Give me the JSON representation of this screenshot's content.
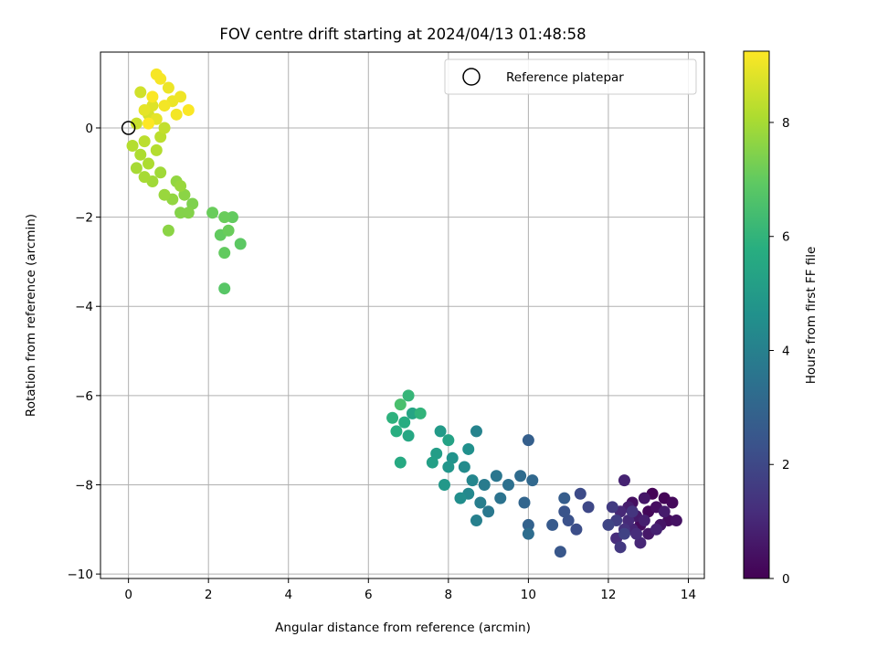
{
  "chart_data": {
    "type": "scatter",
    "title": "FOV centre drift starting at 2024/04/13 01:48:58",
    "xlabel": "Angular distance from reference (arcmin)",
    "ylabel": "Rotation from reference (arcmin)",
    "xlim": [
      -0.7,
      14.4
    ],
    "ylim": [
      -10.1,
      1.7
    ],
    "xticks": [
      0,
      2,
      4,
      6,
      8,
      10,
      12,
      14
    ],
    "yticks": [
      -10,
      -8,
      -6,
      -4,
      -2,
      0
    ],
    "grid": true,
    "legend": {
      "placement": "top-right",
      "entries": [
        "Reference platepar"
      ]
    },
    "colorbar": {
      "label": "Hours from first FF file",
      "range": [
        0,
        9.25
      ],
      "ticks": [
        0,
        2,
        4,
        6,
        8
      ],
      "colormap": "viridis"
    },
    "reference_point": {
      "x": 0,
      "y": 0
    },
    "series": [
      {
        "marker": "filled-circle",
        "points": [
          {
            "x": 13.1,
            "y": -8.2,
            "h": 0.05
          },
          {
            "x": 13.4,
            "y": -8.3,
            "h": 0.1
          },
          {
            "x": 13.0,
            "y": -8.6,
            "h": 0.15
          },
          {
            "x": 13.6,
            "y": -8.4,
            "h": 0.2
          },
          {
            "x": 12.8,
            "y": -8.9,
            "h": 0.25
          },
          {
            "x": 13.5,
            "y": -8.8,
            "h": 0.3
          },
          {
            "x": 13.2,
            "y": -8.5,
            "h": 0.35
          },
          {
            "x": 12.6,
            "y": -8.4,
            "h": 0.4
          },
          {
            "x": 13.7,
            "y": -8.8,
            "h": 0.45
          },
          {
            "x": 13.3,
            "y": -8.9,
            "h": 0.5
          },
          {
            "x": 12.9,
            "y": -8.3,
            "h": 0.55
          },
          {
            "x": 13.0,
            "y": -9.1,
            "h": 0.6
          },
          {
            "x": 12.7,
            "y": -8.7,
            "h": 0.65
          },
          {
            "x": 13.4,
            "y": -8.6,
            "h": 0.7
          },
          {
            "x": 12.5,
            "y": -8.5,
            "h": 0.75
          },
          {
            "x": 12.9,
            "y": -8.8,
            "h": 0.8
          },
          {
            "x": 13.2,
            "y": -9.0,
            "h": 0.85
          },
          {
            "x": 12.4,
            "y": -7.9,
            "h": 0.9
          },
          {
            "x": 12.6,
            "y": -9.0,
            "h": 0.95
          },
          {
            "x": 12.8,
            "y": -9.3,
            "h": 1.0
          },
          {
            "x": 12.3,
            "y": -8.6,
            "h": 1.05
          },
          {
            "x": 12.5,
            "y": -8.8,
            "h": 1.1
          },
          {
            "x": 12.7,
            "y": -9.1,
            "h": 1.15
          },
          {
            "x": 12.2,
            "y": -9.2,
            "h": 1.2
          },
          {
            "x": 12.4,
            "y": -9.0,
            "h": 1.3
          },
          {
            "x": 12.6,
            "y": -8.6,
            "h": 1.4
          },
          {
            "x": 12.3,
            "y": -9.4,
            "h": 1.5
          },
          {
            "x": 12.1,
            "y": -8.5,
            "h": 1.6
          },
          {
            "x": 12.2,
            "y": -8.8,
            "h": 1.7
          },
          {
            "x": 12.4,
            "y": -9.1,
            "h": 1.8
          },
          {
            "x": 12.0,
            "y": -8.9,
            "h": 1.9
          },
          {
            "x": 11.5,
            "y": -8.5,
            "h": 2.0
          },
          {
            "x": 11.3,
            "y": -8.2,
            "h": 2.1
          },
          {
            "x": 11.2,
            "y": -9.0,
            "h": 2.2
          },
          {
            "x": 11.0,
            "y": -8.8,
            "h": 2.3
          },
          {
            "x": 10.9,
            "y": -8.6,
            "h": 2.4
          },
          {
            "x": 10.8,
            "y": -9.5,
            "h": 2.5
          },
          {
            "x": 10.6,
            "y": -8.9,
            "h": 2.6
          },
          {
            "x": 10.9,
            "y": -8.3,
            "h": 2.7
          },
          {
            "x": 10.0,
            "y": -7.0,
            "h": 2.8
          },
          {
            "x": 10.0,
            "y": -8.9,
            "h": 2.9
          },
          {
            "x": 9.9,
            "y": -8.4,
            "h": 3.0
          },
          {
            "x": 10.1,
            "y": -7.9,
            "h": 3.1
          },
          {
            "x": 9.8,
            "y": -7.8,
            "h": 3.2
          },
          {
            "x": 10.0,
            "y": -9.1,
            "h": 3.3
          },
          {
            "x": 9.5,
            "y": -8.0,
            "h": 3.4
          },
          {
            "x": 9.3,
            "y": -8.3,
            "h": 3.5
          },
          {
            "x": 9.2,
            "y": -7.8,
            "h": 3.6
          },
          {
            "x": 9.0,
            "y": -8.6,
            "h": 3.7
          },
          {
            "x": 8.9,
            "y": -8.0,
            "h": 3.8
          },
          {
            "x": 8.8,
            "y": -8.4,
            "h": 3.9
          },
          {
            "x": 8.7,
            "y": -8.8,
            "h": 4.0
          },
          {
            "x": 8.7,
            "y": -6.8,
            "h": 4.1
          },
          {
            "x": 8.6,
            "y": -7.9,
            "h": 4.2
          },
          {
            "x": 8.5,
            "y": -8.2,
            "h": 4.3
          },
          {
            "x": 8.4,
            "y": -7.6,
            "h": 4.4
          },
          {
            "x": 8.3,
            "y": -8.3,
            "h": 4.5
          },
          {
            "x": 8.5,
            "y": -7.2,
            "h": 4.6
          },
          {
            "x": 8.1,
            "y": -7.4,
            "h": 4.7
          },
          {
            "x": 8.0,
            "y": -7.6,
            "h": 4.8
          },
          {
            "x": 7.9,
            "y": -8.0,
            "h": 4.9
          },
          {
            "x": 7.8,
            "y": -6.8,
            "h": 5.0
          },
          {
            "x": 7.7,
            "y": -7.3,
            "h": 5.1
          },
          {
            "x": 7.6,
            "y": -7.5,
            "h": 5.2
          },
          {
            "x": 8.0,
            "y": -7.0,
            "h": 5.3
          },
          {
            "x": 7.1,
            "y": -6.4,
            "h": 5.4
          },
          {
            "x": 7.0,
            "y": -6.9,
            "h": 5.5
          },
          {
            "x": 6.8,
            "y": -7.5,
            "h": 5.6
          },
          {
            "x": 6.9,
            "y": -6.6,
            "h": 5.7
          },
          {
            "x": 6.7,
            "y": -6.8,
            "h": 5.8
          },
          {
            "x": 6.6,
            "y": -6.5,
            "h": 5.9
          },
          {
            "x": 7.3,
            "y": -6.4,
            "h": 6.0
          },
          {
            "x": 7.0,
            "y": -6.0,
            "h": 6.1
          },
          {
            "x": 6.8,
            "y": -6.2,
            "h": 6.5
          },
          {
            "x": 2.4,
            "y": -3.6,
            "h": 6.8
          },
          {
            "x": 2.8,
            "y": -2.6,
            "h": 6.9
          },
          {
            "x": 2.6,
            "y": -2.0,
            "h": 7.0
          },
          {
            "x": 2.4,
            "y": -2.8,
            "h": 7.0
          },
          {
            "x": 2.3,
            "y": -2.4,
            "h": 7.0
          },
          {
            "x": 2.5,
            "y": -2.3,
            "h": 7.1
          },
          {
            "x": 2.1,
            "y": -1.9,
            "h": 7.1
          },
          {
            "x": 2.4,
            "y": -2.0,
            "h": 7.1
          },
          {
            "x": 1.6,
            "y": -1.7,
            "h": 7.4
          },
          {
            "x": 1.5,
            "y": -1.9,
            "h": 7.5
          },
          {
            "x": 1.3,
            "y": -1.9,
            "h": 7.5
          },
          {
            "x": 1.0,
            "y": -2.3,
            "h": 7.6
          },
          {
            "x": 1.4,
            "y": -1.5,
            "h": 7.6
          },
          {
            "x": 1.2,
            "y": -1.2,
            "h": 7.7
          },
          {
            "x": 1.1,
            "y": -1.6,
            "h": 7.7
          },
          {
            "x": 0.9,
            "y": -1.5,
            "h": 7.8
          },
          {
            "x": 1.3,
            "y": -1.3,
            "h": 7.8
          },
          {
            "x": 0.8,
            "y": -1.0,
            "h": 7.9
          },
          {
            "x": 0.6,
            "y": -1.2,
            "h": 7.9
          },
          {
            "x": 0.4,
            "y": -1.1,
            "h": 8.0
          },
          {
            "x": 0.2,
            "y": -0.9,
            "h": 8.0
          },
          {
            "x": 0.5,
            "y": -0.8,
            "h": 8.1
          },
          {
            "x": 0.3,
            "y": -0.6,
            "h": 8.1
          },
          {
            "x": 0.7,
            "y": -0.5,
            "h": 8.2
          },
          {
            "x": 0.1,
            "y": -0.4,
            "h": 8.2
          },
          {
            "x": 0.8,
            "y": -0.2,
            "h": 8.3
          },
          {
            "x": 0.4,
            "y": -0.3,
            "h": 8.3
          },
          {
            "x": 0.9,
            "y": 0.0,
            "h": 8.4
          },
          {
            "x": 0.2,
            "y": 0.1,
            "h": 8.5
          },
          {
            "x": 0.3,
            "y": 0.8,
            "h": 8.6
          },
          {
            "x": 0.5,
            "y": 0.3,
            "h": 8.7
          },
          {
            "x": 0.6,
            "y": 0.5,
            "h": 8.8
          },
          {
            "x": 0.7,
            "y": 0.2,
            "h": 8.9
          },
          {
            "x": 0.4,
            "y": 0.4,
            "h": 8.9
          },
          {
            "x": 1.0,
            "y": 0.9,
            "h": 9.0
          },
          {
            "x": 1.1,
            "y": 0.6,
            "h": 9.0
          },
          {
            "x": 1.3,
            "y": 0.7,
            "h": 9.05
          },
          {
            "x": 0.9,
            "y": 0.5,
            "h": 9.1
          },
          {
            "x": 1.2,
            "y": 0.3,
            "h": 9.1
          },
          {
            "x": 0.8,
            "y": 1.1,
            "h": 9.15
          },
          {
            "x": 0.7,
            "y": 1.2,
            "h": 9.15
          },
          {
            "x": 1.5,
            "y": 0.4,
            "h": 9.2
          },
          {
            "x": 0.6,
            "y": 0.7,
            "h": 9.2
          },
          {
            "x": 0.5,
            "y": 0.1,
            "h": 9.25
          }
        ]
      }
    ]
  }
}
